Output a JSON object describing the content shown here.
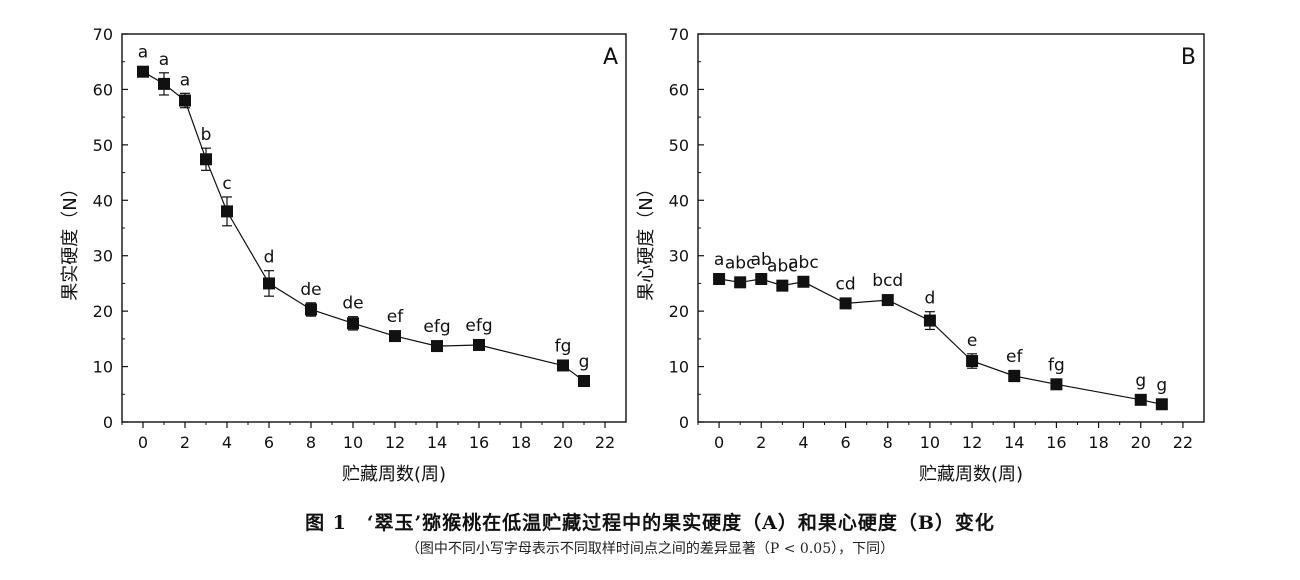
{
  "chart_data": [
    {
      "type": "line",
      "panel_letter": "A",
      "ylabel": "果实硬度（N）",
      "xlabel": "贮藏周数(周)",
      "xlim": [
        -1,
        23
      ],
      "ylim": [
        0,
        70
      ],
      "xticks": [
        0,
        2,
        4,
        6,
        8,
        10,
        12,
        14,
        16,
        18,
        20,
        22
      ],
      "yticks": [
        0,
        10,
        20,
        30,
        40,
        50,
        60,
        70
      ],
      "x": [
        0,
        1,
        2,
        3,
        4,
        6,
        8,
        10,
        12,
        14,
        16,
        20,
        21
      ],
      "y": [
        63.2,
        61.0,
        58.0,
        47.4,
        38.0,
        25.0,
        20.3,
        17.8,
        15.5,
        13.7,
        13.9,
        10.2,
        7.4
      ],
      "error": [
        0.6,
        2.0,
        1.3,
        2.0,
        2.6,
        2.3,
        1.2,
        1.2,
        0.5,
        0.5,
        0.5,
        0.5,
        0.5
      ],
      "letters": [
        "a",
        "a",
        "a",
        "b",
        "c",
        "d",
        "de",
        "de",
        "ef",
        "efg",
        "efg",
        "fg",
        "g"
      ]
    },
    {
      "type": "line",
      "panel_letter": "B",
      "ylabel": "果心硬度（N）",
      "xlabel": "贮藏周数(周)",
      "xlim": [
        -1,
        23
      ],
      "ylim": [
        0,
        70
      ],
      "xticks": [
        0,
        2,
        4,
        6,
        8,
        10,
        12,
        14,
        16,
        18,
        20,
        22
      ],
      "yticks": [
        0,
        10,
        20,
        30,
        40,
        50,
        60,
        70
      ],
      "x": [
        0,
        1,
        2,
        3,
        4,
        6,
        8,
        10,
        12,
        14,
        16,
        20,
        21
      ],
      "y": [
        25.8,
        25.2,
        25.8,
        24.6,
        25.3,
        21.4,
        22.0,
        18.3,
        11.0,
        8.3,
        6.8,
        4.0,
        3.2
      ],
      "error": [
        0.6,
        0.6,
        0.6,
        0.6,
        0.6,
        0.8,
        0.6,
        1.6,
        1.3,
        1.0,
        0.5,
        0.4,
        0.4
      ],
      "letters": [
        "a",
        "abc",
        "ab",
        "abc",
        "abc",
        "cd",
        "bcd",
        "d",
        "e",
        "ef",
        "fg",
        "g",
        "g"
      ]
    }
  ],
  "caption": {
    "title": "图 1　‘翠玉’猕猴桃在低温贮藏过程中的果实硬度（A）和果心硬度（B）变化",
    "note": "（图中不同小写字母表示不同取样时间点之间的差异显著（P < 0.05），下同）"
  },
  "colors": {
    "ink": "#111111",
    "marker": "#111111"
  }
}
